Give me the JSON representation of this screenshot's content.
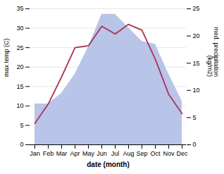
{
  "chart_data": {
    "type": "line",
    "xlabel": "date (month)",
    "ylabel": "max temp (C)",
    "y2label": "med. precipitation\n(kg/m2)",
    "categories": [
      "Jan",
      "Feb",
      "Mar",
      "Apr",
      "May",
      "Jun",
      "Jul",
      "Aug",
      "Sep",
      "Oct",
      "Nov",
      "Dec"
    ],
    "series": [
      {
        "type": "area",
        "axis": "y2",
        "color": "#b8c4e8",
        "values": [
          7.5,
          7.5,
          9.5,
          13.0,
          18.0,
          24.0,
          24.0,
          21.5,
          19.0,
          18.5,
          13.0,
          8.0
        ]
      },
      {
        "type": "line",
        "color": "#aa3355",
        "values": [
          5.5,
          10.5,
          17.5,
          25.0,
          25.5,
          30.5,
          28.5,
          31.0,
          29.5,
          22.0,
          13.0,
          8.0
        ]
      }
    ],
    "ylim": [
      0,
      35
    ],
    "yticks": [
      0,
      5,
      10,
      15,
      20,
      25,
      30,
      35
    ],
    "y2lim": [
      0,
      25
    ],
    "y2ticks": [
      0,
      5,
      10,
      15,
      20,
      25
    ],
    "grid": true
  }
}
